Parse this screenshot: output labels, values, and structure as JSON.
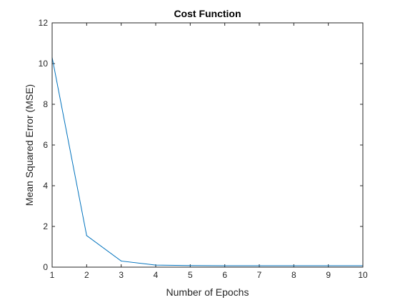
{
  "chart_data": {
    "type": "line",
    "title": "Cost Function",
    "xlabel": "Number of Epochs",
    "ylabel": "Mean Squared Error (MSE)",
    "xlim": [
      1,
      10
    ],
    "ylim": [
      0,
      12
    ],
    "xticks": [
      1,
      2,
      3,
      4,
      5,
      6,
      7,
      8,
      9,
      10
    ],
    "yticks": [
      0,
      2,
      4,
      6,
      8,
      10,
      12
    ],
    "grid": false,
    "series": [
      {
        "x": [
          1,
          2,
          3,
          4,
          5,
          6,
          7,
          8,
          9,
          10
        ],
        "y": [
          10.3,
          1.55,
          0.3,
          0.1,
          0.08,
          0.07,
          0.07,
          0.07,
          0.07,
          0.07
        ],
        "color": "#0072BD"
      }
    ]
  }
}
